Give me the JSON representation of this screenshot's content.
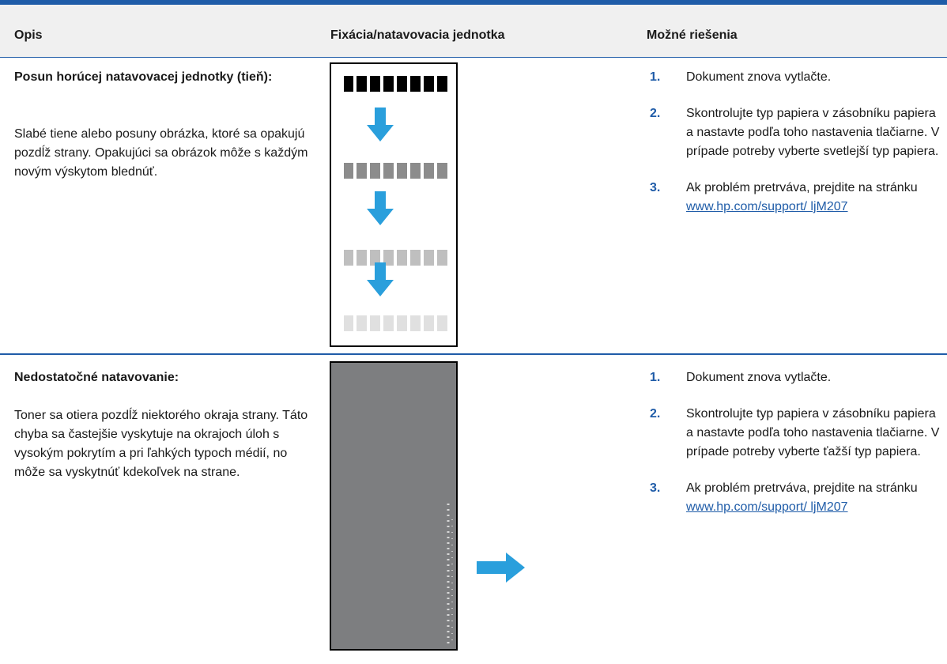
{
  "header": {
    "columns": [
      "Opis",
      "Fixácia/natavovacia jednotka",
      "Možné riešenia"
    ]
  },
  "rows": [
    {
      "title": "Posun horúcej natavovacej jednotky (tieň):",
      "description": "Slabé tiene alebo posuny obrázka, ktoré sa opakujú pozdĺž strany. Opakujúci sa obrázok môže s každým novým výskytom blednúť.",
      "solutions": [
        {
          "number": "1.",
          "text": "Dokument znova vytlačte."
        },
        {
          "number": "2.",
          "text": "Skontrolujte typ papiera v zásobníku papiera a nastavte podľa toho nastavenia tlačiarne. V prípade potreby vyberte svetlejší typ papiera."
        },
        {
          "number": "3.",
          "text": "Ak problém pretrváva, prejdite na stránku",
          "link": "www.hp.com/support/ ljM207"
        }
      ]
    },
    {
      "title": "Nedostatočné natavovanie:",
      "description": "Toner sa otiera pozdĺž niektorého okraja strany. Táto chyba sa častejšie vyskytuje na okrajoch úloh s vysokým pokrytím a pri ľahkých typoch médií, no môže sa vyskytnúť kdekoľvek na strane.",
      "solutions": [
        {
          "number": "1.",
          "text": "Dokument znova vytlačte."
        },
        {
          "number": "2.",
          "text": "Skontrolujte typ papiera v zásobníku papiera a nastavte podľa toho nastavenia tlačiarne. V prípade potreby vyberte ťažší typ papiera."
        },
        {
          "number": "3.",
          "text": "Ak problém pretrváva, prejdite na stránku",
          "link": "www.hp.com/support/ ljM207"
        }
      ]
    }
  ]
}
